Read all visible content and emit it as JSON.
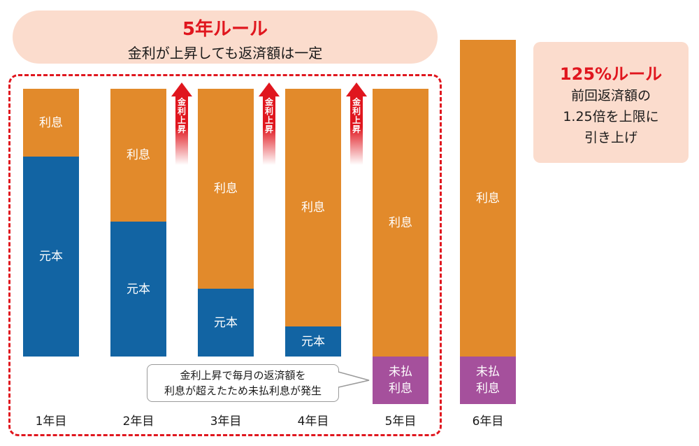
{
  "header": {
    "title": "5年ルール",
    "subtitle": "金利が上昇しても返済額は一定"
  },
  "rule125": {
    "title": "125%ルール",
    "lines": [
      "前回返済額の",
      "1.25倍を上限に",
      "引き上げ"
    ]
  },
  "colors": {
    "interest": "#e28a2b",
    "principal": "#1264a3",
    "unpaid": "#a5509c",
    "accent": "#e0161e",
    "panel": "#fbdccd"
  },
  "labels": {
    "interest": "利息",
    "principal": "元本",
    "unpaid_line1": "未払",
    "unpaid_line2": "利息",
    "rate_rise": "金利上昇"
  },
  "callout": {
    "line1": "金利上昇で毎月の返済額を",
    "line2": "利息が超えたため未払利息が発生"
  },
  "chart_data": {
    "type": "bar",
    "stacked": true,
    "categories": [
      "1年目",
      "2年目",
      "3年目",
      "4年目",
      "5年目",
      "6年目"
    ],
    "series": [
      {
        "name": "元本",
        "values": [
          286,
          193,
          97,
          43,
          0,
          0
        ]
      },
      {
        "name": "利息",
        "values": [
          97,
          190,
          286,
          340,
          383,
          453
        ]
      },
      {
        "name": "未払利息",
        "values": [
          0,
          0,
          0,
          0,
          68,
          68
        ]
      }
    ],
    "annotations": [
      "金利上昇",
      "金利上昇",
      "金利上昇"
    ]
  }
}
